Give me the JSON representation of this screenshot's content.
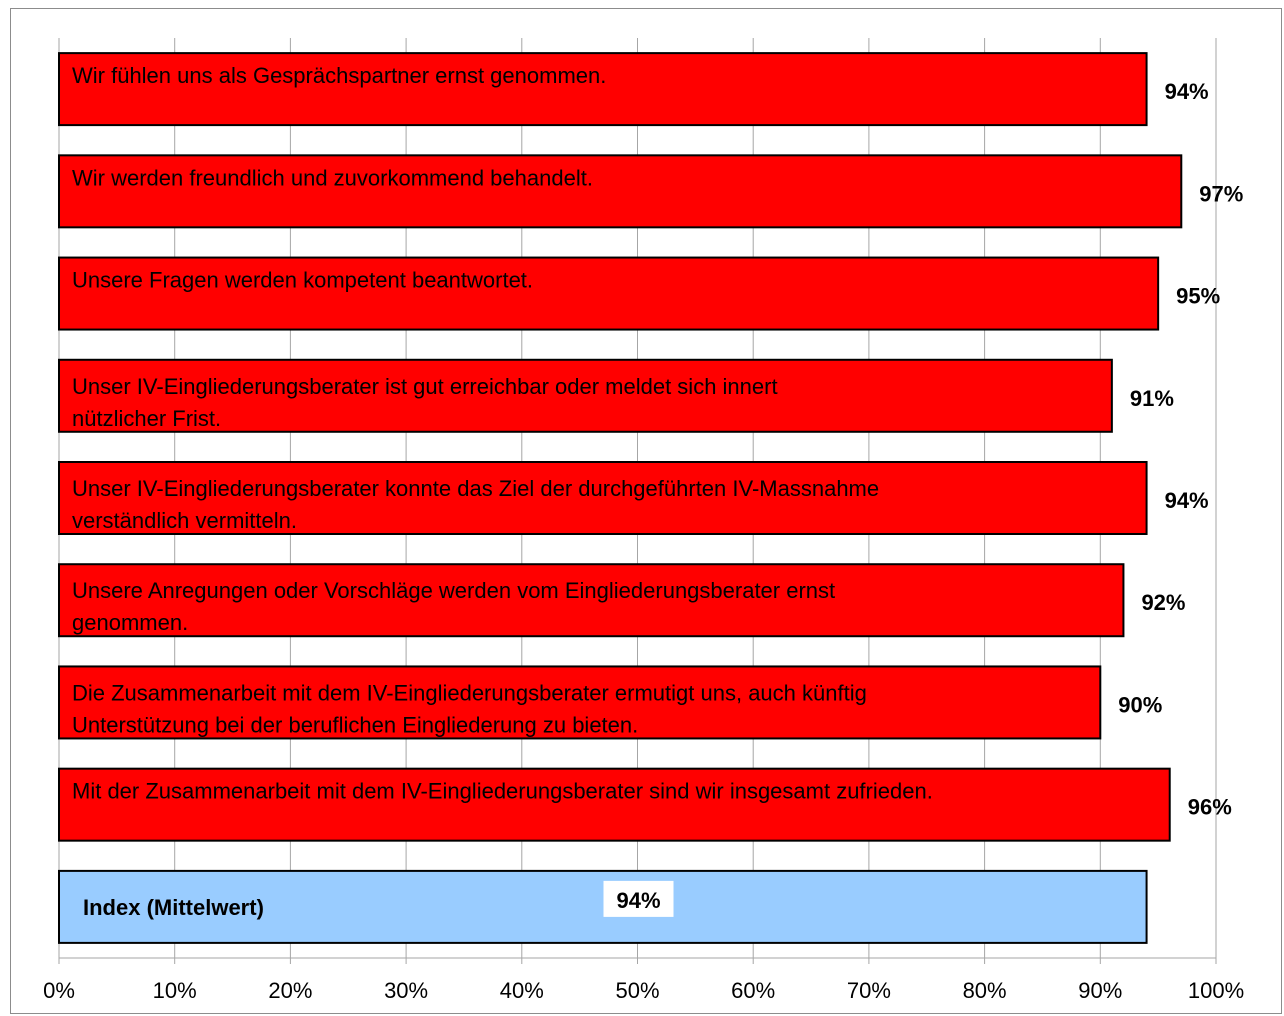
{
  "chart_data": {
    "type": "bar",
    "orientation": "horizontal",
    "title": "",
    "xlabel": "",
    "ylabel": "",
    "xlim": [
      0,
      100
    ],
    "grid": true,
    "categories": [
      [
        "Wir fühlen uns als Gesprächspartner ernst genommen."
      ],
      [
        "Wir werden freundlich und zuvorkommend behandelt."
      ],
      [
        "Unsere Fragen werden kompetent beantwortet."
      ],
      [
        "Unser IV-Eingliederungsberater ist gut erreichbar oder meldet sich innert",
        "nützlicher Frist."
      ],
      [
        "Unser IV-Eingliederungsberater konnte das Ziel der durchgeführten IV-Massnahme",
        "verständlich vermitteln."
      ],
      [
        "Unsere Anregungen oder Vorschläge werden vom Eingliederungsberater ernst",
        "genommen."
      ],
      [
        "Die Zusammenarbeit mit dem IV-Eingliederungsberater ermutigt uns, auch künftig",
        "Unterstützung bei der beruflichen Eingliederung zu bieten."
      ],
      [
        "Mit der Zusammenarbeit mit dem IV-Eingliederungsberater sind wir insgesamt zufrieden."
      ],
      [
        "Index (Mittelwert)"
      ]
    ],
    "values": [
      94,
      97,
      95,
      91,
      94,
      92,
      90,
      96,
      94
    ],
    "value_labels": [
      "94%",
      "97%",
      "95%",
      "91%",
      "94%",
      "92%",
      "90%",
      "96%",
      "94%"
    ],
    "x_ticks": [
      "0%",
      "10%",
      "20%",
      "30%",
      "40%",
      "50%",
      "60%",
      "70%",
      "80%",
      "90%",
      "100%"
    ],
    "colors": {
      "bar": "#ff0000",
      "index_bar": "#99ccff",
      "grid": "#a6a6a6",
      "border": "#000000"
    }
  }
}
